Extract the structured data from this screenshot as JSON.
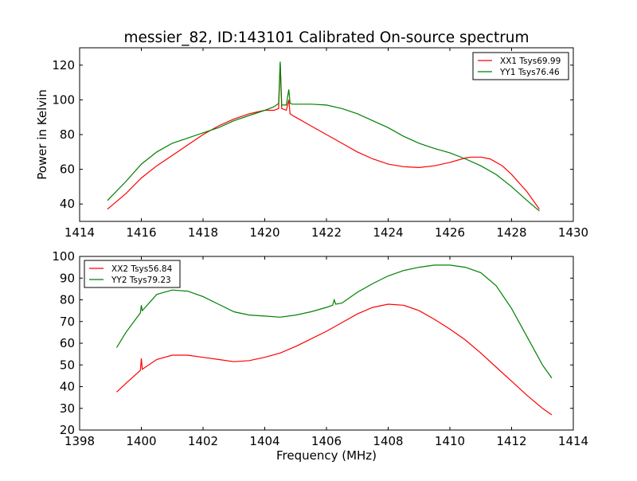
{
  "chart_data": [
    {
      "type": "line",
      "title": "messier_82, ID:143101 Calibrated On-source spectrum",
      "xlabel": "",
      "ylabel": "Power in Kelvin",
      "xlim": [
        1414,
        1430
      ],
      "ylim": [
        30,
        130
      ],
      "xticks": [
        1414,
        1416,
        1418,
        1420,
        1422,
        1424,
        1426,
        1428,
        1430
      ],
      "yticks": [
        40,
        60,
        80,
        100,
        120
      ],
      "legend_position": "top-right",
      "series": [
        {
          "name": "XX1 Tsys69.99",
          "color": "#ff0000",
          "x": [
            1414.9,
            1415.5,
            1416,
            1416.5,
            1417,
            1417.5,
            1418,
            1418.5,
            1419,
            1419.5,
            1420,
            1420.3,
            1420.45,
            1420.5,
            1420.55,
            1420.7,
            1420.78,
            1420.82,
            1420.9,
            1421,
            1421.5,
            1422,
            1422.5,
            1423,
            1423.5,
            1424,
            1424.5,
            1425,
            1425.5,
            1426,
            1426.5,
            1426.7,
            1427,
            1427.3,
            1427.7,
            1428,
            1428.5,
            1428.9
          ],
          "y": [
            37,
            46,
            55,
            62,
            68,
            74,
            80,
            85,
            89,
            92,
            94,
            94,
            95,
            121,
            95,
            94,
            100,
            92,
            91,
            90,
            85,
            80,
            75,
            70,
            66,
            63,
            61.5,
            61,
            62,
            64,
            66.5,
            67,
            67,
            66,
            62,
            57,
            47,
            37
          ]
        },
        {
          "name": "YY1 Tsys76.46",
          "color": "#008000",
          "x": [
            1414.9,
            1415.5,
            1416,
            1416.5,
            1417,
            1417.5,
            1418,
            1418.5,
            1419,
            1419.5,
            1420,
            1420.3,
            1420.45,
            1420.5,
            1420.55,
            1420.7,
            1420.78,
            1420.82,
            1420.9,
            1421.5,
            1422,
            1422.5,
            1423,
            1423.5,
            1424,
            1424.5,
            1425,
            1425.5,
            1426,
            1426.5,
            1427,
            1427.5,
            1428,
            1428.5,
            1428.9
          ],
          "y": [
            42,
            53,
            63,
            70,
            75,
            78,
            81,
            84,
            88,
            91,
            94,
            96,
            98,
            122,
            97,
            97,
            106,
            98,
            97.5,
            97.5,
            97,
            95,
            92,
            88,
            84,
            79,
            75,
            72,
            69.5,
            66,
            62,
            57,
            50,
            42,
            36
          ]
        }
      ]
    },
    {
      "type": "line",
      "title": "",
      "xlabel": "Frequency (MHz)",
      "ylabel": "",
      "xlim": [
        1398,
        1414
      ],
      "ylim": [
        20,
        100
      ],
      "xticks": [
        1398,
        1400,
        1402,
        1404,
        1406,
        1408,
        1410,
        1412,
        1414
      ],
      "yticks": [
        20,
        30,
        40,
        50,
        60,
        70,
        80,
        90,
        100
      ],
      "legend_position": "top-left",
      "series": [
        {
          "name": "XX2 Tsys56.84",
          "color": "#ff0000",
          "x": [
            1399.2,
            1399.5,
            1399.97,
            1400,
            1400.03,
            1400.5,
            1401,
            1401.5,
            1402,
            1402.5,
            1403,
            1403.5,
            1404,
            1404.5,
            1405,
            1405.5,
            1406,
            1406.5,
            1407,
            1407.5,
            1408,
            1408.5,
            1409,
            1409.5,
            1410,
            1410.5,
            1411,
            1411.5,
            1412,
            1412.5,
            1413,
            1413.3
          ],
          "y": [
            37.5,
            41.5,
            47.5,
            53,
            48,
            52.5,
            54.5,
            54.5,
            53.5,
            52.5,
            51.5,
            52,
            53.5,
            55.5,
            58.5,
            62,
            65.5,
            69.5,
            73.5,
            76.5,
            78,
            77.5,
            75,
            71,
            66.5,
            61.5,
            55.5,
            49,
            42.5,
            36,
            30,
            27
          ]
        },
        {
          "name": "YY2 Tsys79.23",
          "color": "#008000",
          "x": [
            1399.2,
            1399.5,
            1399.97,
            1400,
            1400.03,
            1400.5,
            1401,
            1401.5,
            1402,
            1402.5,
            1403,
            1403.5,
            1404,
            1404.5,
            1405,
            1405.5,
            1406,
            1406.2,
            1406.25,
            1406.3,
            1406.5,
            1407,
            1407.5,
            1408,
            1408.5,
            1409,
            1409.5,
            1410,
            1410.5,
            1411,
            1411.5,
            1412,
            1412.5,
            1413,
            1413.3
          ],
          "y": [
            58,
            65,
            74,
            77.5,
            75,
            82.5,
            84.5,
            84,
            81.5,
            78,
            74.5,
            73,
            72.5,
            72,
            73,
            74.5,
            76.5,
            77.5,
            80,
            78,
            78.5,
            83.5,
            87.5,
            91,
            93.5,
            95,
            96,
            96,
            95,
            92.5,
            86.5,
            76,
            63,
            50,
            44
          ]
        }
      ]
    }
  ]
}
